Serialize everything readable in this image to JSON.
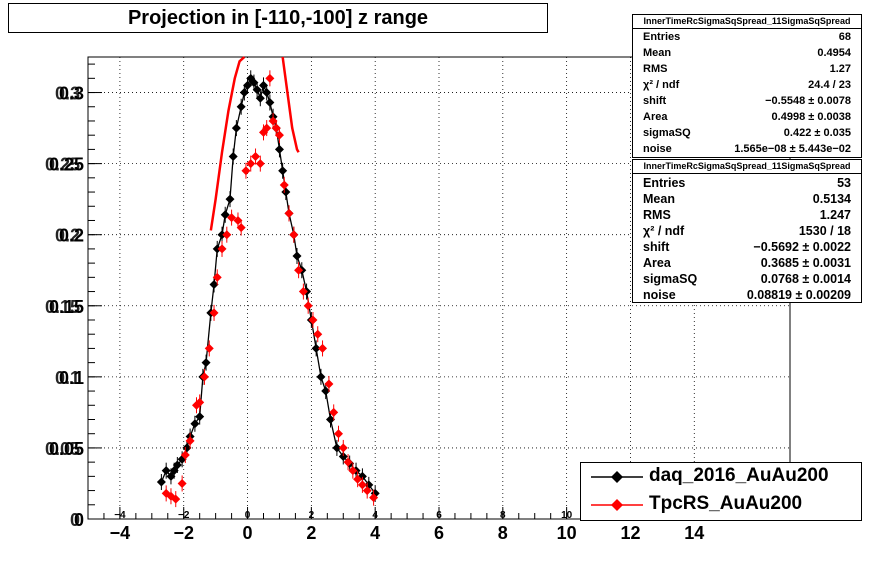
{
  "title": "Projection in [-110,-100] z range",
  "stats": [
    {
      "header": "InnerTimeRcSigmaSqSpread_11SigmaSqSpread",
      "rows": [
        {
          "key": "Entries",
          "value": "68"
        },
        {
          "key": "Mean",
          "value": "0.4954"
        },
        {
          "key": "RMS",
          "value": "1.27"
        },
        {
          "key": "χ² / ndf",
          "value": "24.4 / 23"
        },
        {
          "key": "shift",
          "value": "−0.5548 ± 0.0078"
        },
        {
          "key": "Area",
          "value": "0.4998 ± 0.0038"
        },
        {
          "key": "sigmaSQ",
          "value": "0.422 ± 0.035"
        },
        {
          "key": "noise",
          "value": "1.565e−08 ± 5.443e−02"
        }
      ]
    },
    {
      "header": "InnerTimeRcSigmaSqSpread_11SigmaSqSpread",
      "rows": [
        {
          "key": "Entries",
          "value": "53"
        },
        {
          "key": "Mean",
          "value": "0.5134"
        },
        {
          "key": "RMS",
          "value": "1.247"
        },
        {
          "key": "χ² / ndf",
          "value": "1530 / 18"
        },
        {
          "key": "shift",
          "value": "−0.5692 ± 0.0022"
        },
        {
          "key": "Area",
          "value": "0.3685 ± 0.0031"
        },
        {
          "key": "sigmaSQ",
          "value": "0.0768 ± 0.0014"
        },
        {
          "key": "noise",
          "value": "0.08819 ± 0.00209"
        }
      ]
    }
  ],
  "legend": [
    {
      "label": "daq_2016_AuAu200",
      "color": "#000000"
    },
    {
      "label": "TpcRS_AuAu200",
      "color": "#ff0000"
    }
  ],
  "chart_data": {
    "type": "scatter",
    "title": "Projection in [-110,-100] z range",
    "xlim": [
      -5,
      17
    ],
    "ylim": [
      0,
      0.325
    ],
    "x_ticks": [
      -4,
      -2,
      0,
      2,
      4,
      6,
      8,
      10,
      12,
      14
    ],
    "x_tick_labels_large": [
      "−4",
      "−2",
      "0",
      "2",
      "4",
      "6",
      "8",
      "10",
      "12",
      "14"
    ],
    "x_tick_labels_small": [
      "−4",
      "−2",
      "0",
      "2",
      "4",
      "6",
      "8",
      "10",
      "12",
      "14"
    ],
    "y_ticks": [
      0,
      0.05,
      0.1,
      0.15,
      0.2,
      0.25,
      0.3
    ],
    "y_tick_labels": [
      "0",
      "0.05",
      "0.1",
      "0.15",
      "0.2",
      "0.25",
      "0.3"
    ],
    "y_tick_labels_overlay": [
      "0",
      "0.05",
      "0.1",
      "0.15",
      "0.2",
      "0.25",
      "0.3"
    ],
    "grid": true,
    "series": [
      {
        "name": "daq_2016_AuAu200",
        "color": "#000000",
        "x": [
          -2.7,
          -2.55,
          -2.4,
          -2.3,
          -2.2,
          -2.05,
          -1.9,
          -1.8,
          -1.65,
          -1.5,
          -1.4,
          -1.3,
          -1.15,
          -1.05,
          -0.95,
          -0.8,
          -0.7,
          -0.55,
          -0.45,
          -0.35,
          -0.2,
          -0.1,
          0.0,
          0.1,
          0.2,
          0.3,
          0.4,
          0.5,
          0.6,
          0.7,
          0.8,
          0.9,
          1.0,
          1.1,
          1.2,
          1.3,
          1.45,
          1.55,
          1.7,
          1.85,
          2.0,
          2.15,
          2.3,
          2.45,
          2.6,
          2.8,
          3.0,
          3.2,
          3.4,
          3.6,
          3.8,
          4.0
        ],
        "y": [
          0.026,
          0.034,
          0.03,
          0.034,
          0.038,
          0.042,
          0.05,
          0.058,
          0.067,
          0.072,
          0.1,
          0.11,
          0.145,
          0.165,
          0.19,
          0.2,
          0.214,
          0.225,
          0.255,
          0.275,
          0.29,
          0.3,
          0.305,
          0.31,
          0.307,
          0.302,
          0.296,
          0.305,
          0.3,
          0.293,
          0.283,
          0.275,
          0.26,
          0.245,
          0.23,
          0.215,
          0.2,
          0.185,
          0.175,
          0.16,
          0.14,
          0.12,
          0.1,
          0.09,
          0.07,
          0.05,
          0.044,
          0.039,
          0.034,
          0.03,
          0.024,
          0.018
        ]
      },
      {
        "name": "TpcRS_AuAu200",
        "color": "#ff0000",
        "x": [
          -2.55,
          -2.4,
          -2.25,
          -2.05,
          -1.95,
          -1.8,
          -1.6,
          -1.5,
          -1.35,
          -1.2,
          -1.05,
          -0.95,
          -0.8,
          -0.65,
          -0.5,
          -0.3,
          -0.2,
          -0.05,
          0.1,
          0.25,
          0.4,
          0.5,
          0.6,
          0.7,
          0.8,
          0.9,
          1.0,
          1.15,
          1.3,
          1.45,
          1.6,
          1.75,
          1.9,
          2.05,
          2.2,
          2.35,
          2.55,
          2.7,
          2.85,
          3.0,
          3.15,
          3.3,
          3.45,
          3.6,
          3.75,
          3.95
        ],
        "y": [
          0.018,
          0.016,
          0.014,
          0.025,
          0.045,
          0.055,
          0.08,
          0.082,
          0.1,
          0.12,
          0.145,
          0.17,
          0.19,
          0.2,
          0.212,
          0.21,
          0.205,
          0.245,
          0.25,
          0.255,
          0.25,
          0.272,
          0.275,
          0.31,
          0.28,
          0.275,
          0.27,
          0.235,
          0.215,
          0.2,
          0.175,
          0.16,
          0.15,
          0.14,
          0.13,
          0.12,
          0.095,
          0.075,
          0.06,
          0.05,
          0.04,
          0.034,
          0.028,
          0.024,
          0.02,
          0.015
        ]
      }
    ],
    "fit_curve": {
      "color": "#ff0000",
      "x": [
        -1.15,
        -1.0,
        -0.8,
        -0.6,
        -0.4,
        -0.25,
        -0.1
      ],
      "y": [
        0.203,
        0.225,
        0.258,
        0.287,
        0.31,
        0.322,
        0.325
      ],
      "x2": [
        1.1,
        1.25,
        1.4,
        1.55,
        1.6
      ],
      "y2": [
        0.325,
        0.3,
        0.275,
        0.26,
        0.258
      ]
    }
  }
}
